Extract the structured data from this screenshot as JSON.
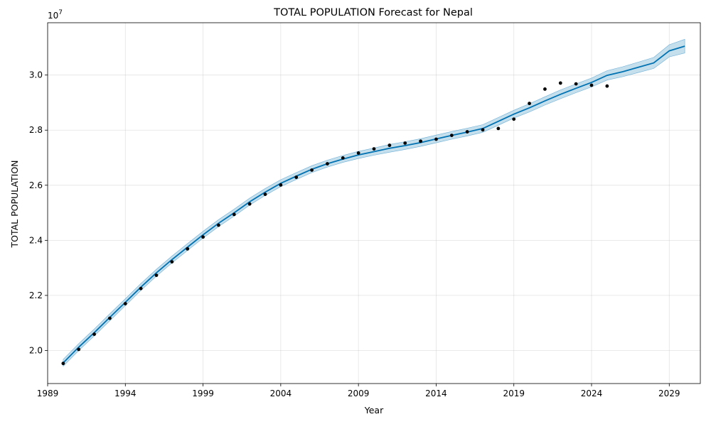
{
  "chart_data": {
    "type": "line",
    "title": "TOTAL POPULATION Forecast for Nepal",
    "xlabel": "Year",
    "ylabel": "TOTAL POPULATION",
    "y_multiplier_label": "1e7",
    "xlim": [
      1989,
      2031
    ],
    "ylim": [
      1.88,
      3.19
    ],
    "x_ticks": [
      1989,
      1994,
      1999,
      2004,
      2009,
      2014,
      2019,
      2024,
      2029
    ],
    "y_ticks": [
      2.0,
      2.2,
      2.4,
      2.6,
      2.8,
      3.0
    ],
    "y_tick_labels": [
      "2.0",
      "2.2",
      "2.4",
      "2.6",
      "2.8",
      "3.0"
    ],
    "grid": true,
    "colors": {
      "forecast_line": "#0072B2",
      "interval_fill": "#9ecae1",
      "observed_points": "#000000"
    },
    "observed": {
      "x": [
        1990,
        1991,
        1992,
        1993,
        1994,
        1995,
        1996,
        1997,
        1998,
        1999,
        2000,
        2001,
        2002,
        2003,
        2004,
        2005,
        2006,
        2007,
        2008,
        2009,
        2010,
        2011,
        2012,
        2013,
        2014,
        2015,
        2016,
        2017,
        2018,
        2019,
        2020,
        2021,
        2022,
        2023,
        2024,
        2025
      ],
      "y": [
        1.953,
        2.004,
        2.059,
        2.117,
        2.17,
        2.225,
        2.273,
        2.322,
        2.369,
        2.412,
        2.455,
        2.494,
        2.532,
        2.567,
        2.601,
        2.629,
        2.655,
        2.678,
        2.699,
        2.717,
        2.732,
        2.745,
        2.753,
        2.76,
        2.767,
        2.781,
        2.794,
        2.801,
        2.806,
        2.84,
        2.897,
        2.949,
        2.971,
        2.968,
        2.963,
        2.96
      ]
    },
    "forecast": {
      "x": [
        1990,
        1991,
        1992,
        1993,
        1994,
        1995,
        1996,
        1997,
        1998,
        1999,
        2000,
        2001,
        2002,
        2003,
        2004,
        2005,
        2006,
        2007,
        2008,
        2009,
        2010,
        2011,
        2012,
        2013,
        2014,
        2015,
        2016,
        2017,
        2018,
        2019,
        2020,
        2021,
        2022,
        2023,
        2024,
        2025,
        2026,
        2027,
        2028,
        2029,
        2030
      ],
      "y": [
        1.955,
        2.012,
        2.065,
        2.12,
        2.175,
        2.23,
        2.282,
        2.33,
        2.375,
        2.42,
        2.462,
        2.5,
        2.54,
        2.575,
        2.607,
        2.633,
        2.658,
        2.678,
        2.695,
        2.71,
        2.722,
        2.734,
        2.744,
        2.755,
        2.768,
        2.781,
        2.793,
        2.806,
        2.832,
        2.858,
        2.881,
        2.906,
        2.93,
        2.952,
        2.973,
        2.999,
        3.012,
        3.028,
        3.044,
        3.088,
        3.105
      ]
    },
    "interval": {
      "lower": [
        1.943,
        2.0,
        2.053,
        2.108,
        2.163,
        2.218,
        2.27,
        2.318,
        2.363,
        2.408,
        2.45,
        2.488,
        2.528,
        2.563,
        2.595,
        2.621,
        2.646,
        2.666,
        2.683,
        2.697,
        2.709,
        2.72,
        2.73,
        2.741,
        2.754,
        2.767,
        2.779,
        2.792,
        2.818,
        2.844,
        2.866,
        2.891,
        2.914,
        2.936,
        2.957,
        2.982,
        2.994,
        3.009,
        3.024,
        3.066,
        3.08
      ],
      "upper": [
        1.968,
        2.025,
        2.078,
        2.133,
        2.188,
        2.243,
        2.295,
        2.343,
        2.388,
        2.433,
        2.475,
        2.513,
        2.553,
        2.588,
        2.62,
        2.646,
        2.671,
        2.691,
        2.708,
        2.723,
        2.735,
        2.748,
        2.758,
        2.769,
        2.782,
        2.795,
        2.807,
        2.82,
        2.846,
        2.872,
        2.896,
        2.921,
        2.946,
        2.968,
        2.989,
        3.016,
        3.03,
        3.047,
        3.064,
        3.11,
        3.13
      ]
    }
  }
}
